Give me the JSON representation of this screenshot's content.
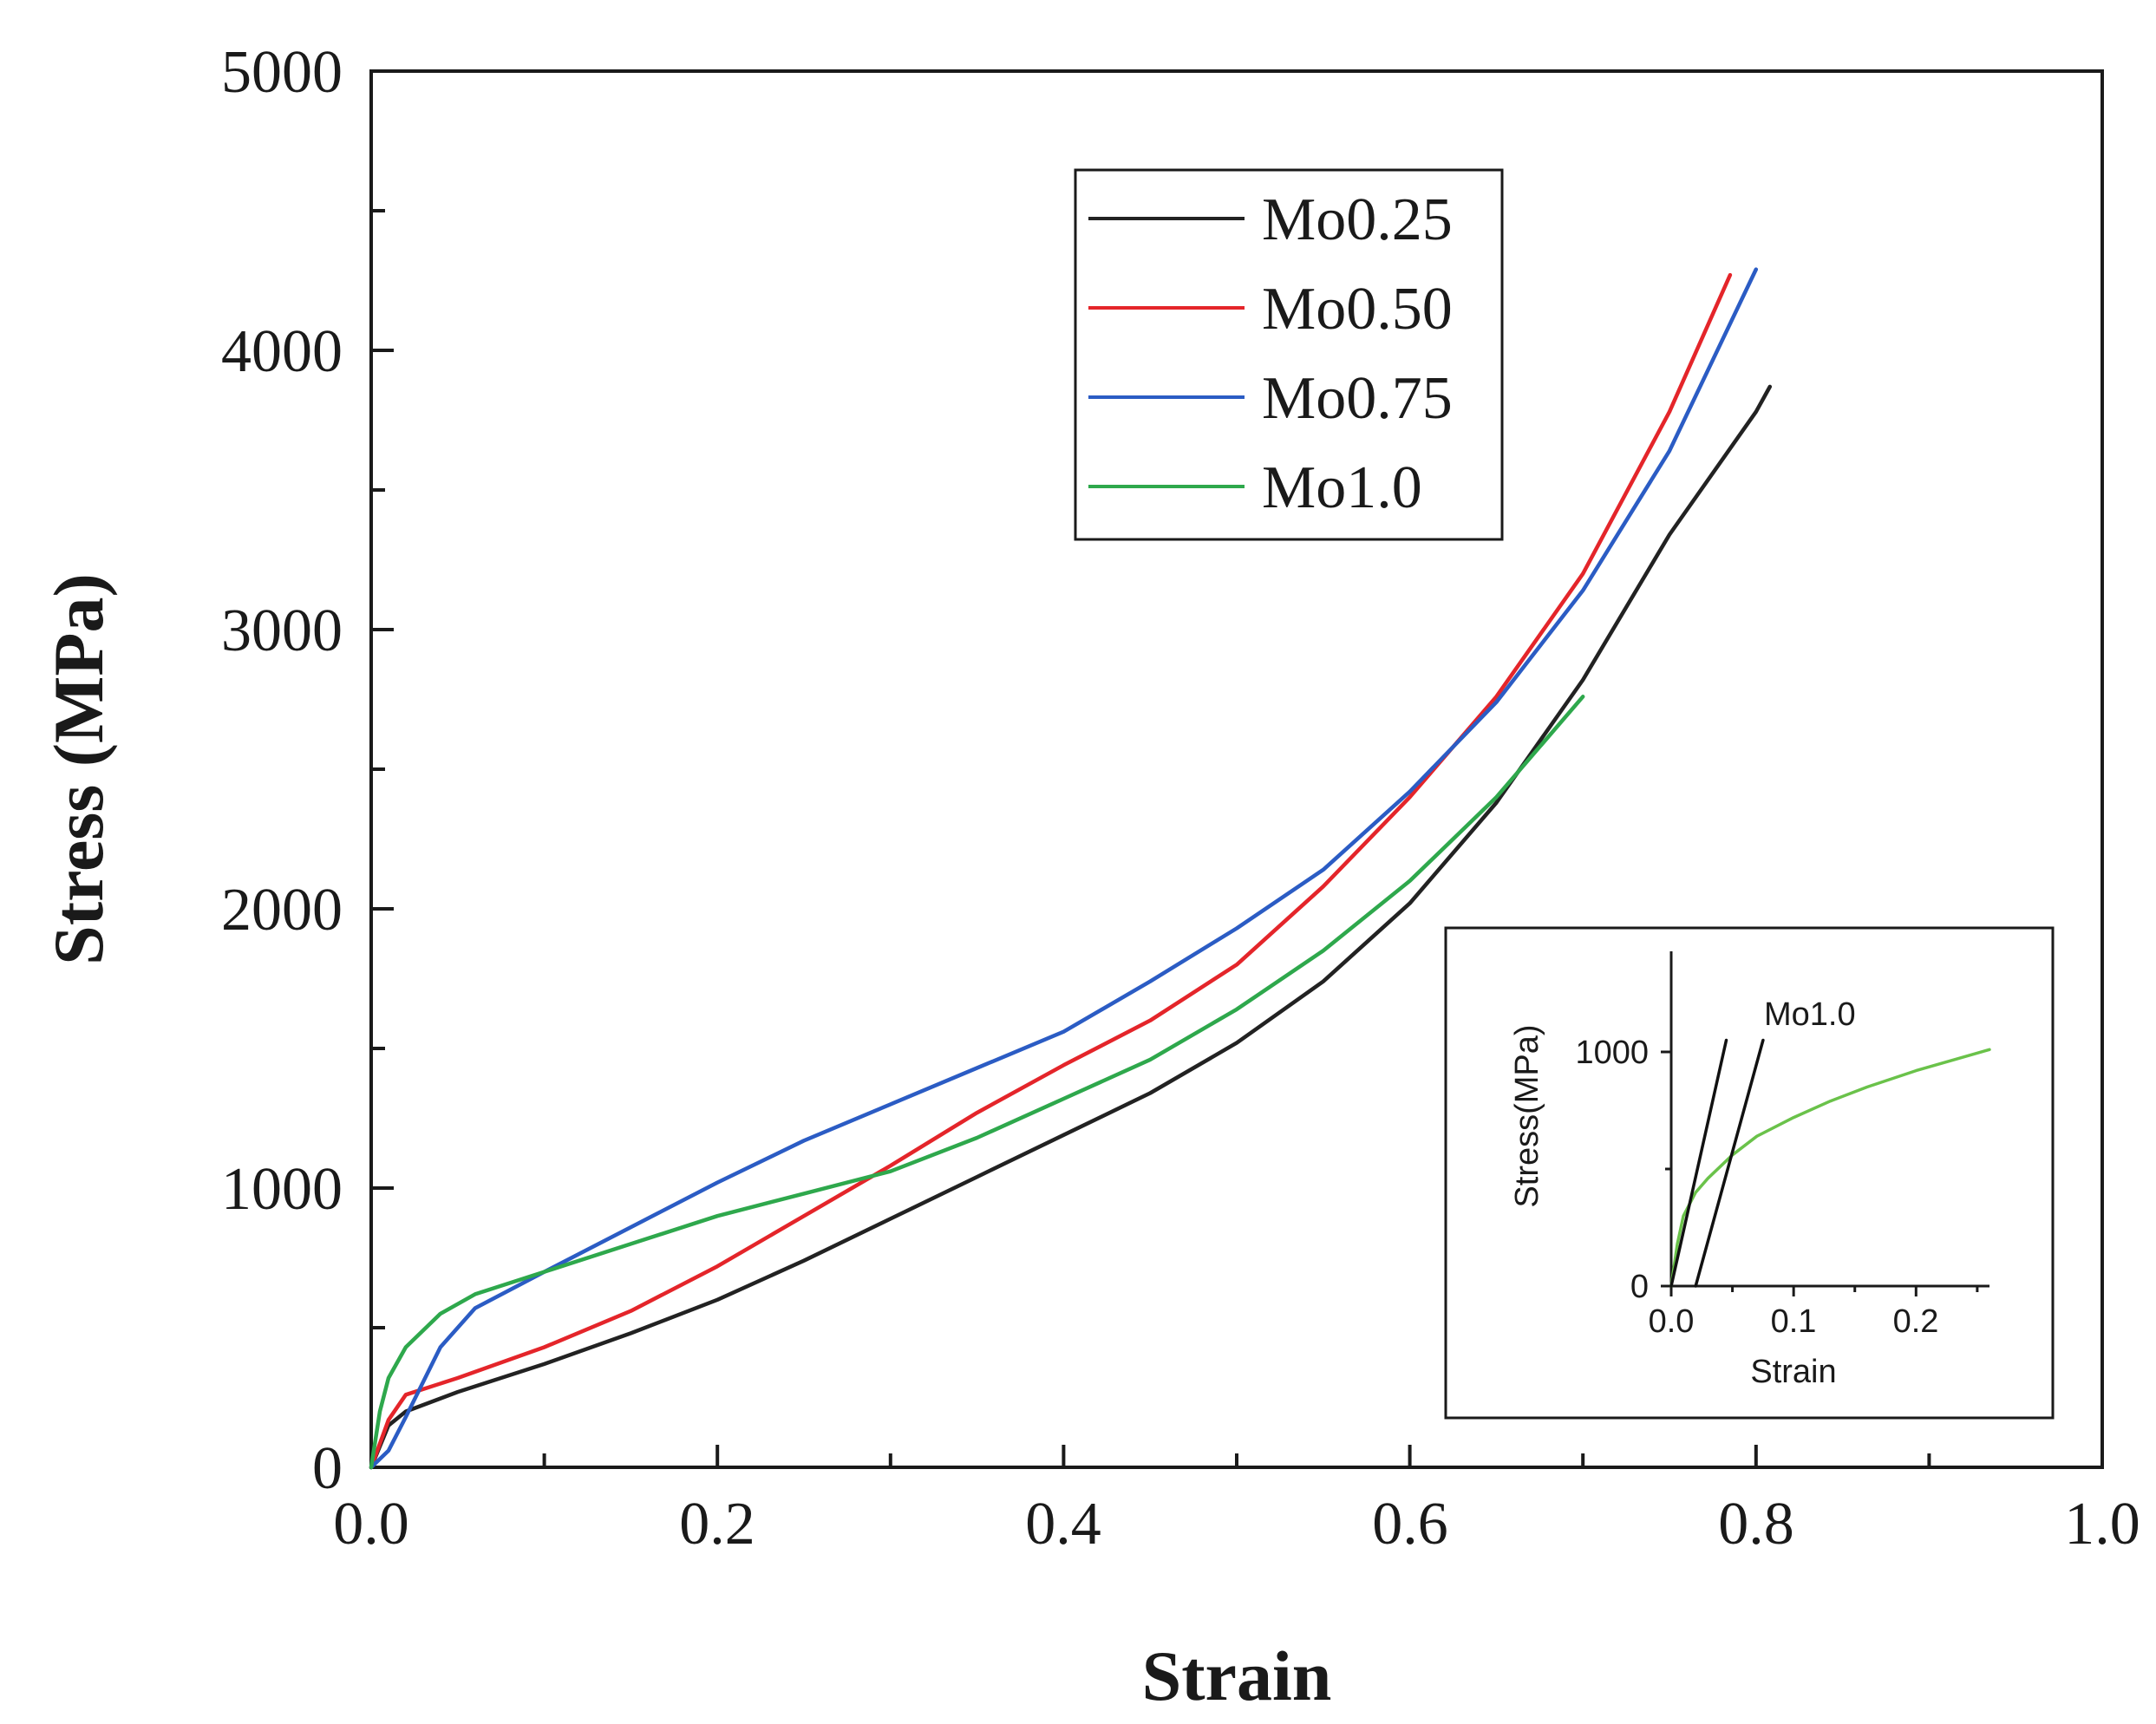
{
  "chart_data": [
    {
      "type": "line",
      "title": "",
      "xlabel": "Strain",
      "ylabel": "Stress (MPa)",
      "xlim": [
        0.0,
        1.0
      ],
      "ylim": [
        0,
        5000
      ],
      "xticks": [
        0.0,
        0.2,
        0.4,
        0.6,
        0.8,
        1.0
      ],
      "xtick_labels": [
        "0.0",
        "0.2",
        "0.4",
        "0.6",
        "0.8",
        "1.0"
      ],
      "yticks": [
        0,
        1000,
        2000,
        3000,
        4000,
        5000
      ],
      "ytick_labels": [
        "0",
        "1000",
        "2000",
        "3000",
        "4000",
        "5000"
      ],
      "legend_position": "upper-center",
      "series": [
        {
          "name": "Mo0.25",
          "color": "#222222",
          "x": [
            0,
            0.01,
            0.02,
            0.05,
            0.1,
            0.15,
            0.2,
            0.25,
            0.3,
            0.35,
            0.4,
            0.45,
            0.5,
            0.55,
            0.6,
            0.65,
            0.7,
            0.75,
            0.8,
            0.808
          ],
          "y": [
            0,
            150,
            200,
            270,
            370,
            480,
            600,
            740,
            890,
            1040,
            1190,
            1340,
            1520,
            1740,
            2020,
            2380,
            2820,
            3340,
            3780,
            3870
          ]
        },
        {
          "name": "Mo0.50",
          "color": "#e4252a",
          "x": [
            0,
            0.01,
            0.02,
            0.05,
            0.1,
            0.15,
            0.2,
            0.25,
            0.3,
            0.35,
            0.4,
            0.45,
            0.5,
            0.55,
            0.6,
            0.65,
            0.7,
            0.75,
            0.785
          ],
          "y": [
            0,
            170,
            260,
            320,
            430,
            560,
            720,
            900,
            1080,
            1270,
            1440,
            1600,
            1800,
            2080,
            2400,
            2760,
            3200,
            3780,
            4270
          ]
        },
        {
          "name": "Mo0.75",
          "color": "#2b5cc4",
          "x": [
            0,
            0.01,
            0.02,
            0.04,
            0.06,
            0.1,
            0.15,
            0.2,
            0.25,
            0.3,
            0.35,
            0.4,
            0.45,
            0.5,
            0.55,
            0.6,
            0.65,
            0.7,
            0.75,
            0.8
          ],
          "y": [
            0,
            60,
            180,
            430,
            570,
            700,
            860,
            1020,
            1170,
            1300,
            1430,
            1560,
            1740,
            1930,
            2140,
            2420,
            2740,
            3140,
            3640,
            4290
          ]
        },
        {
          "name": "Mo1.0",
          "color": "#2ea84c",
          "x": [
            0,
            0.005,
            0.01,
            0.02,
            0.04,
            0.06,
            0.1,
            0.15,
            0.2,
            0.25,
            0.3,
            0.35,
            0.4,
            0.45,
            0.5,
            0.55,
            0.6,
            0.65,
            0.7
          ],
          "y": [
            0,
            200,
            320,
            430,
            550,
            620,
            700,
            800,
            900,
            980,
            1060,
            1180,
            1320,
            1460,
            1640,
            1850,
            2100,
            2400,
            2760
          ]
        }
      ]
    },
    {
      "type": "line",
      "title": "",
      "xlabel": "Strain",
      "ylabel": "Stress(MPa)",
      "xlim": [
        0.0,
        0.26
      ],
      "ylim": [
        0,
        1400
      ],
      "xticks": [
        0.0,
        0.1,
        0.2
      ],
      "xtick_labels": [
        "0.0",
        "0.1",
        "0.2"
      ],
      "yticks": [
        0,
        1000
      ],
      "ytick_labels": [
        "0",
        "1000"
      ],
      "annotation": "Mo1.0",
      "series": [
        {
          "name": "Mo1.0",
          "color": "#6ac24a",
          "x": [
            0,
            0.005,
            0.01,
            0.02,
            0.03,
            0.05,
            0.07,
            0.1,
            0.13,
            0.16,
            0.2,
            0.26
          ],
          "y": [
            0,
            180,
            300,
            400,
            460,
            560,
            640,
            720,
            790,
            850,
            920,
            1010
          ]
        },
        {
          "name": "elastic-line",
          "color": "#111111",
          "x": [
            0.0,
            0.045
          ],
          "y": [
            0,
            1050
          ]
        },
        {
          "name": "offset-line",
          "color": "#111111",
          "x": [
            0.02,
            0.075
          ],
          "y": [
            0,
            1050
          ]
        }
      ]
    }
  ]
}
